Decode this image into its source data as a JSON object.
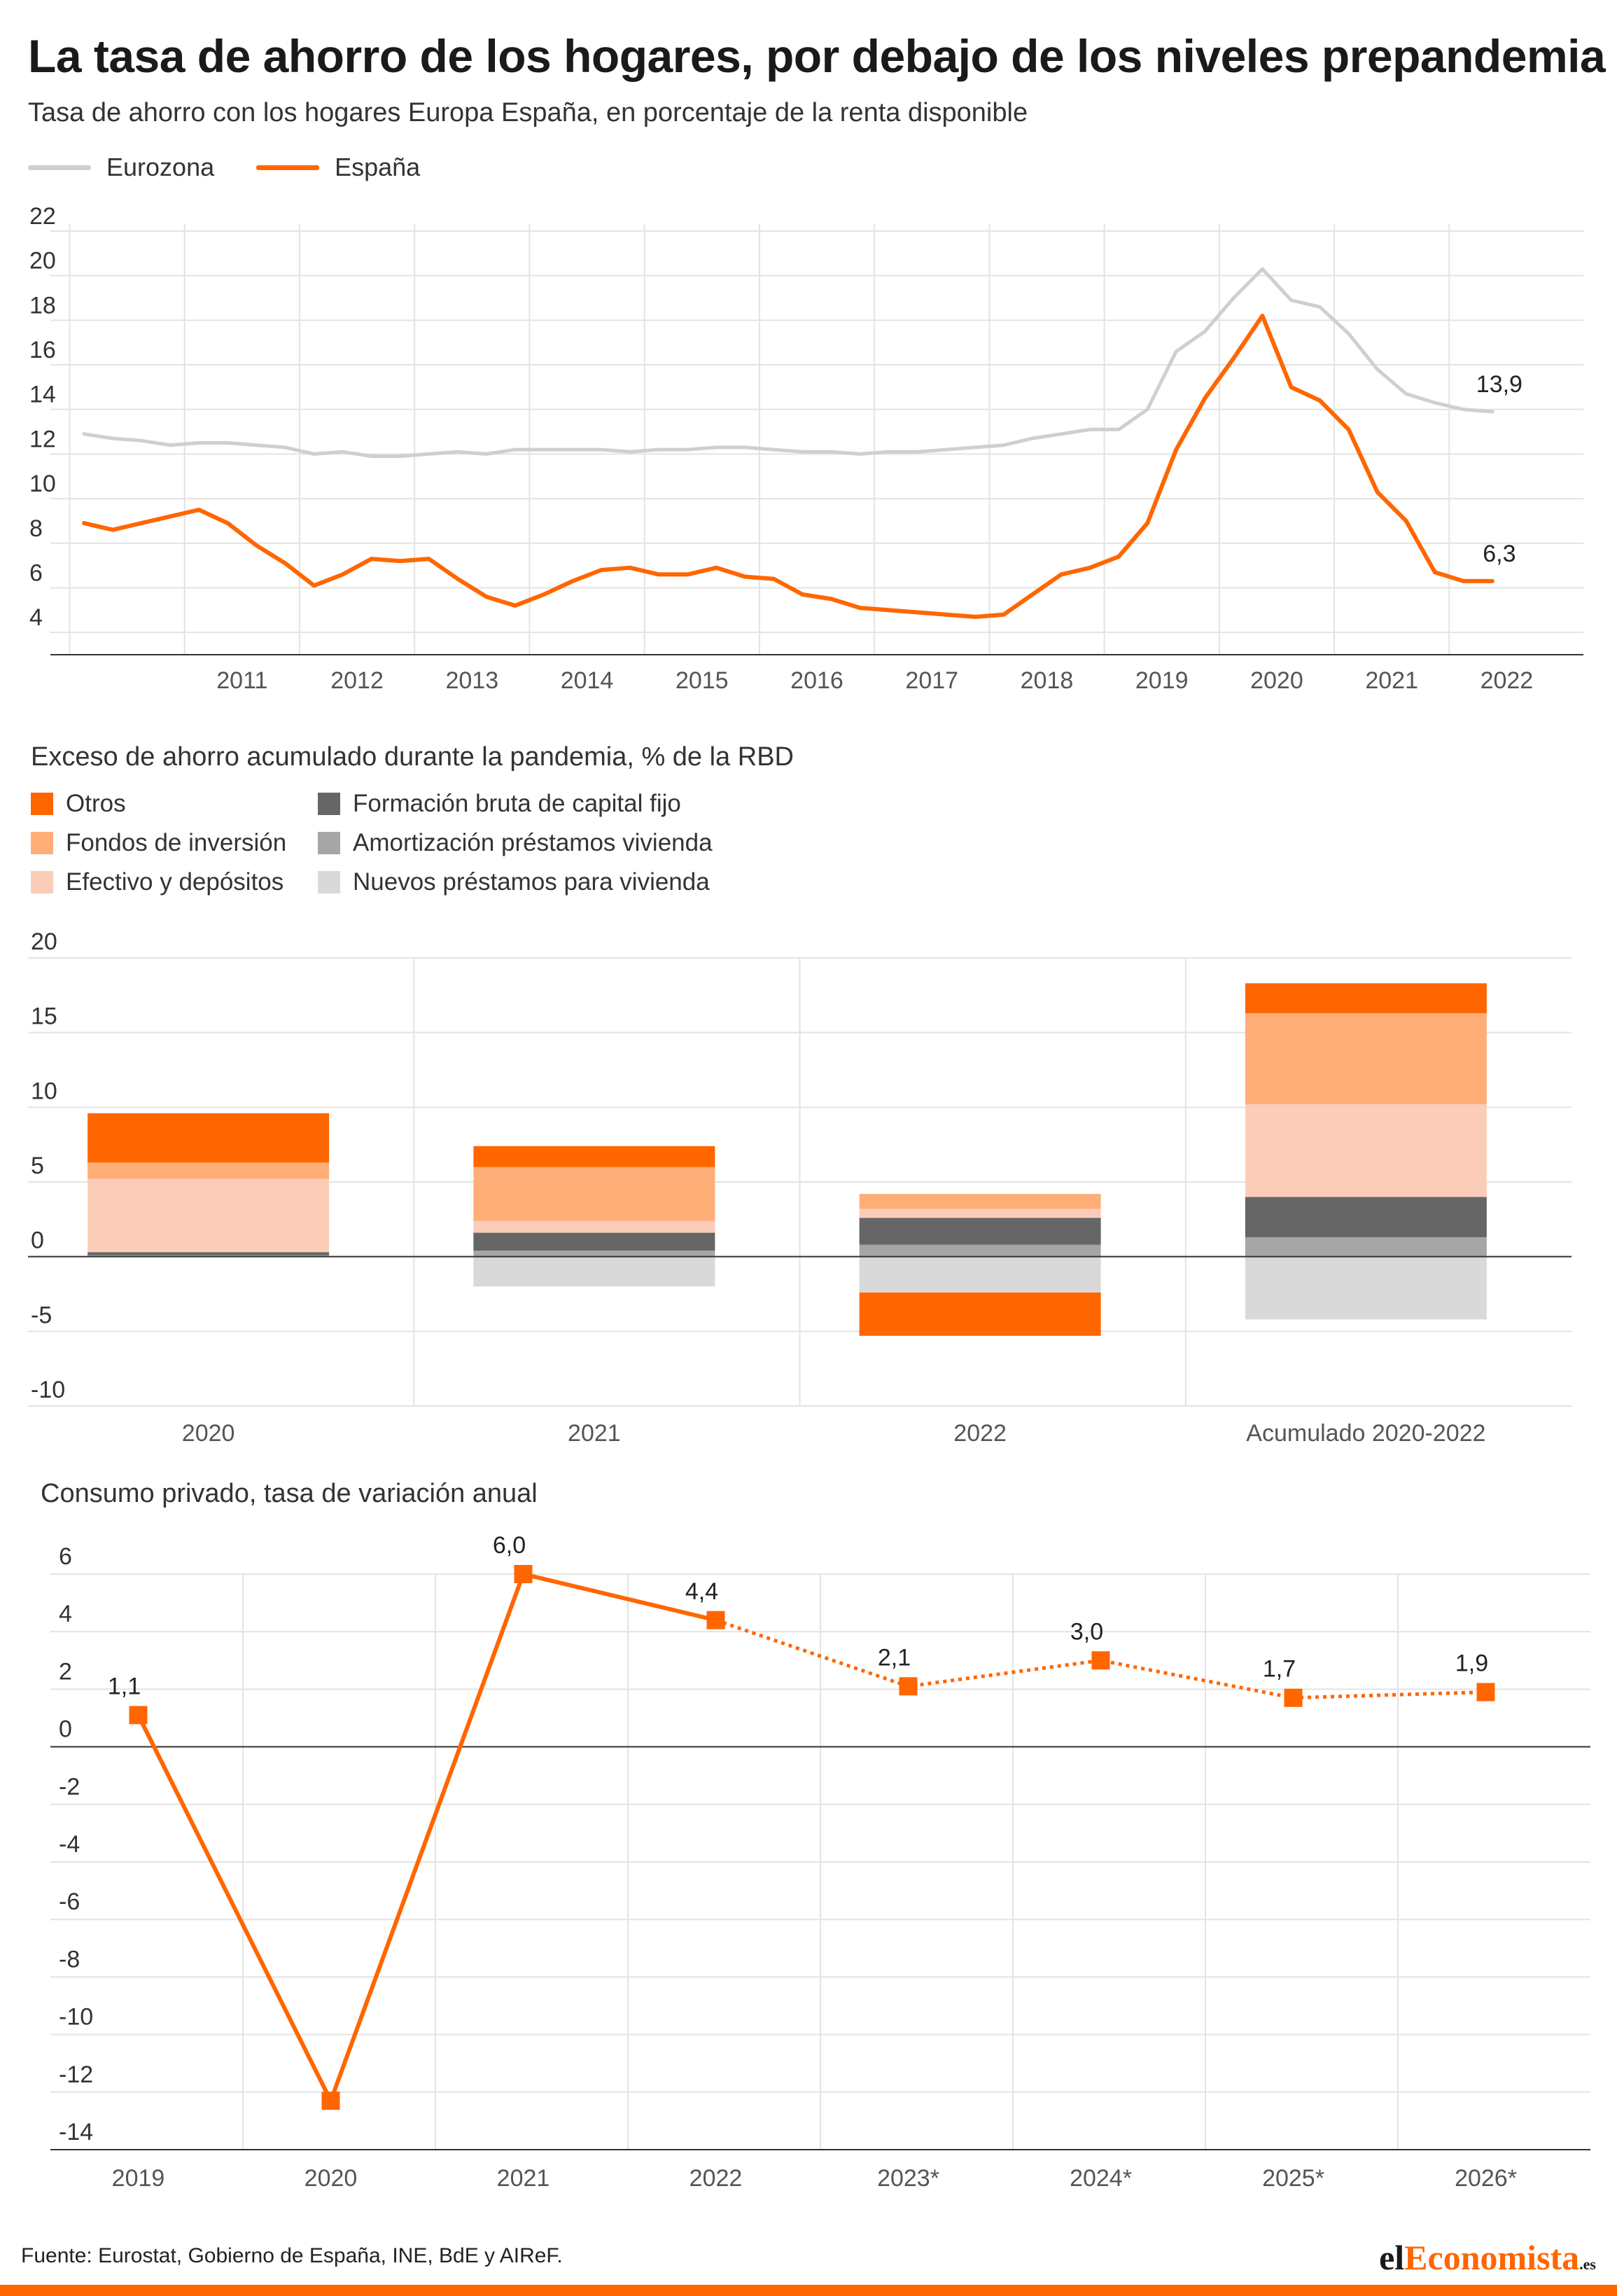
{
  "header": {
    "title": "La tasa de ahorro de los hogares, por debajo de los niveles prepandemia",
    "subtitle": "Tasa de ahorro con los hogares Europa España, en porcentaje de la renta disponible"
  },
  "colors": {
    "orange": "#ff6600",
    "eurozone_gray": "#cfcfcf",
    "otros": "#ff6600",
    "fondos": "#ffae78",
    "efectivo": "#fbcdb8",
    "fbcf": "#666666",
    "amortizacion": "#a6a6a6",
    "nuevos": "#d9d9d9",
    "grid": "#e3e3e3",
    "axis": "#333333"
  },
  "chart_data": [
    {
      "type": "line",
      "x_ticks": [
        "2011",
        "2012",
        "2013",
        "2014",
        "2015",
        "2016",
        "2017",
        "2018",
        "2019",
        "2020",
        "2021",
        "2022"
      ],
      "y_ticks": [
        "22",
        "20",
        "18",
        "16",
        "14",
        "12",
        "10",
        "8",
        "6",
        "4"
      ],
      "ylim": [
        3,
        22
      ],
      "xlim": [
        2010.25,
        2023.0
      ],
      "grid": true,
      "legend_position": "top-left",
      "x": [
        2010.25,
        2010.5,
        2010.75,
        2011.0,
        2011.25,
        2011.5,
        2011.75,
        2012.0,
        2012.25,
        2012.5,
        2012.75,
        2013.0,
        2013.25,
        2013.5,
        2013.75,
        2014.0,
        2014.25,
        2014.5,
        2014.75,
        2015.0,
        2015.25,
        2015.5,
        2015.75,
        2016.0,
        2016.25,
        2016.5,
        2016.75,
        2017.0,
        2017.25,
        2017.5,
        2017.75,
        2018.0,
        2018.25,
        2018.5,
        2018.75,
        2019.0,
        2019.25,
        2019.5,
        2019.75,
        2020.0,
        2020.25,
        2020.5,
        2020.75,
        2021.0,
        2021.25,
        2021.5,
        2021.75,
        2022.0,
        2022.25,
        2022.5
      ],
      "series": [
        {
          "name": "Eurozona",
          "color": "#cfcfcf",
          "values": [
            12.9,
            12.7,
            12.6,
            12.4,
            12.5,
            12.5,
            12.4,
            12.3,
            12.0,
            12.1,
            11.9,
            11.9,
            12.0,
            12.1,
            12.0,
            12.2,
            12.2,
            12.2,
            12.2,
            12.1,
            12.2,
            12.2,
            12.3,
            12.3,
            12.2,
            12.1,
            12.1,
            12.0,
            12.1,
            12.1,
            12.2,
            12.3,
            12.4,
            12.7,
            12.9,
            13.1,
            13.1,
            14.0,
            16.6,
            17.5,
            19.0,
            20.3,
            18.9,
            18.6,
            17.4,
            15.8,
            14.7,
            14.3,
            14.0,
            13.9
          ],
          "end_label": "13,9"
        },
        {
          "name": "España",
          "color": "#ff6600",
          "values": [
            8.9,
            8.6,
            8.9,
            9.2,
            9.5,
            8.9,
            7.9,
            7.1,
            6.1,
            6.6,
            7.3,
            7.2,
            7.3,
            6.4,
            5.6,
            5.2,
            5.7,
            6.3,
            6.8,
            6.9,
            6.6,
            6.6,
            6.9,
            6.5,
            6.4,
            5.7,
            5.5,
            5.1,
            5.0,
            4.9,
            4.8,
            4.7,
            4.8,
            5.7,
            6.6,
            6.9,
            7.4,
            8.9,
            12.2,
            14.5,
            16.3,
            18.2,
            15.0,
            14.4,
            13.1,
            10.3,
            9.0,
            6.7,
            6.3,
            6.3
          ],
          "end_label": "6,3"
        }
      ]
    },
    {
      "type": "bar",
      "stacked": true,
      "title": "Exceso de ahorro acumulado durante la pandemia, % de la RBD",
      "categories": [
        "2020",
        "2021",
        "2022",
        "Acumulado 2020-2022"
      ],
      "y_ticks": [
        "20",
        "15",
        "10",
        "5",
        "0",
        "-5",
        "-10"
      ],
      "ylim": [
        -10,
        20
      ],
      "grid": true,
      "legend_position": "top-left",
      "series": [
        {
          "name": "Nuevos préstamos para vivienda",
          "color": "#d9d9d9",
          "values": [
            0.0,
            -2.0,
            -2.4,
            -4.2
          ]
        },
        {
          "name": "Amortización préstamos vivienda",
          "color": "#a6a6a6",
          "values": [
            0.1,
            0.4,
            0.8,
            1.3
          ]
        },
        {
          "name": "Formación bruta de capital fijo",
          "color": "#666666",
          "values": [
            0.2,
            1.2,
            1.8,
            2.7
          ]
        },
        {
          "name": "Efectivo y depósitos",
          "color": "#fbcdb8",
          "values": [
            4.9,
            0.8,
            0.6,
            6.2
          ]
        },
        {
          "name": "Fondos de inversión",
          "color": "#ffae78",
          "values": [
            1.1,
            3.6,
            1.0,
            6.1
          ]
        },
        {
          "name": "Otros",
          "color": "#ff6600",
          "values": [
            3.3,
            1.4,
            -2.9,
            2.0
          ]
        }
      ]
    },
    {
      "type": "line",
      "title": "Consumo privado, tasa de variación anual",
      "categories": [
        "2019",
        "2020",
        "2021",
        "2022",
        "2023*",
        "2024*",
        "2025*",
        "2026*"
      ],
      "y_ticks": [
        "6",
        "4",
        "2",
        "0",
        "-2",
        "-4",
        "-6",
        "-8",
        "-10",
        "-12",
        "-14"
      ],
      "ylim": [
        -14,
        6
      ],
      "grid": true,
      "series": [
        {
          "color": "#ff6600",
          "values": [
            1.1,
            -12.3,
            6.0,
            4.4,
            2.1,
            3.0,
            1.7,
            1.9
          ],
          "data_labels": [
            "1,1",
            "",
            "6,0",
            "4,4",
            "2,1",
            "3,0",
            "1,7",
            "1,9"
          ],
          "forecast_from": 3
        }
      ]
    }
  ],
  "footer": {
    "source": "Fuente: Eurostat, Gobierno de España, INE, BdE y AIReF.",
    "brand_left": "el",
    "brand_mid": "Economista",
    "brand_sup": ".es"
  }
}
